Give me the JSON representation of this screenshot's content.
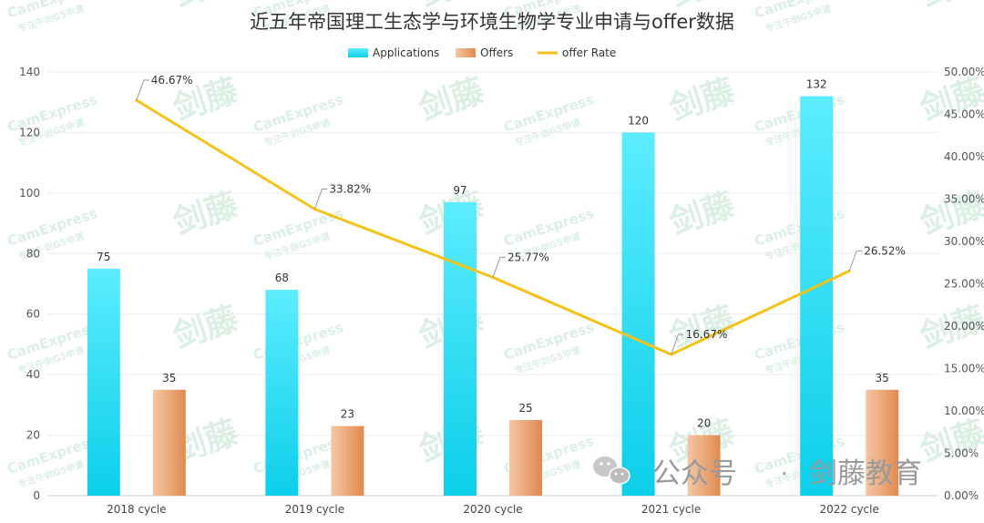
{
  "chart_data": {
    "type": "bar",
    "title": "近五年帝国理工生态学与环境生物学专业申请与offer数据",
    "categories": [
      "2018 cycle",
      "2019 cycle",
      "2020 cycle",
      "2021 cycle",
      "2022 cycle"
    ],
    "series": [
      {
        "name": "Applications",
        "kind": "bar",
        "axis": "left",
        "values": [
          75,
          68,
          97,
          120,
          132
        ],
        "color": "#1fd6f0"
      },
      {
        "name": "Offers",
        "kind": "bar",
        "axis": "left",
        "values": [
          35,
          23,
          25,
          20,
          35
        ],
        "color": "#e8955e"
      },
      {
        "name": "offer Rate",
        "kind": "line",
        "axis": "right",
        "values": [
          46.67,
          33.82,
          25.77,
          16.67,
          26.52
        ],
        "color": "#f5c21a"
      }
    ],
    "data_labels": {
      "Applications": [
        "75",
        "68",
        "97",
        "120",
        "132"
      ],
      "Offers": [
        "35",
        "23",
        "25",
        "20",
        "35"
      ],
      "offer Rate": [
        "46.67%",
        "33.82%",
        "25.77%",
        "16.67%",
        "26.52%"
      ]
    },
    "y_left": {
      "min": 0,
      "max": 140,
      "ticks": [
        "0",
        "20",
        "40",
        "60",
        "80",
        "100",
        "120",
        "140"
      ]
    },
    "y_right": {
      "min": 0,
      "max": 50,
      "ticks": [
        "0.00%",
        "5.00%",
        "10.00%",
        "15.00%",
        "20.00%",
        "25.00%",
        "30.00%",
        "35.00%",
        "40.00%",
        "45.00%",
        "50.00%"
      ]
    },
    "legend_position": "top-center",
    "grid": true
  },
  "watermark": {
    "brand_cn": "剑藤",
    "brand_en": "CamExpress",
    "tagline": "专注午剑G5申请",
    "footer_platform": "公众号",
    "footer_dot": "·",
    "footer_name": "剑藤教育"
  }
}
